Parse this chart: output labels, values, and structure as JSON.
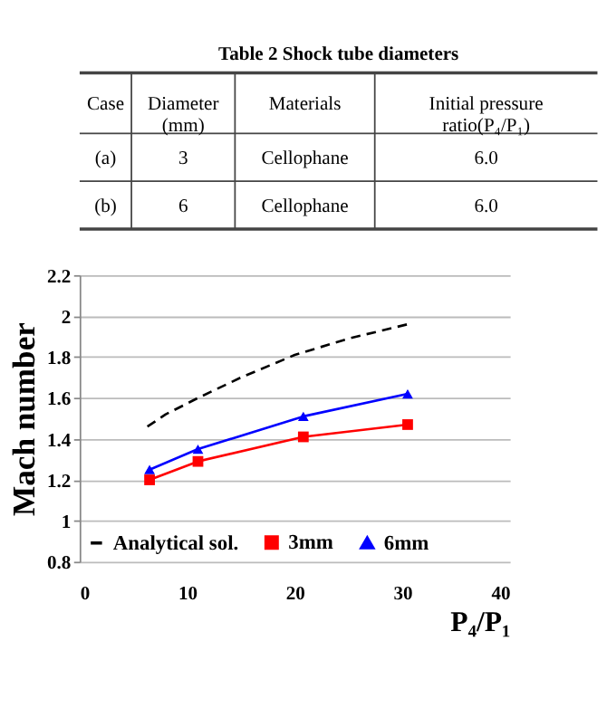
{
  "chart_data": [
    {
      "type": "other",
      "title": "Table 2 Shock tube diameters",
      "categories": [
        "Case",
        "Diameter\n(mm)",
        "Materials",
        "Initial pressure\nratio(P₄/P₁)"
      ],
      "annotations": [
        "(a)",
        "3",
        "Cellophane",
        "6.0",
        "(b)",
        "6",
        "Cellophane",
        "6.0"
      ]
    },
    {
      "type": "line",
      "xlabel": "P₄/P₁",
      "ylabel": "Mach number",
      "xlim": [
        0,
        40
      ],
      "xticks": [
        0,
        10,
        20,
        30,
        40
      ],
      "ylim": [
        0.8,
        2.2
      ],
      "yticks": [
        0.8,
        1,
        1.2,
        1.4,
        1.6,
        1.8,
        2,
        2.2
      ],
      "grid": "y",
      "legend": "bottom",
      "series": [
        {
          "name": "Analytical sol.",
          "color": "#000000",
          "line_style": "dashed",
          "marker": "none",
          "x": [
            6.3,
            8,
            11,
            15,
            20,
            25,
            30.5
          ],
          "values": [
            1.46,
            1.52,
            1.6,
            1.7,
            1.81,
            1.89,
            1.96
          ]
        },
        {
          "name": "3mm",
          "color": "#ff0000",
          "line_style": "solid",
          "marker": "square",
          "x": [
            6.5,
            11,
            20.8,
            30.5
          ],
          "values": [
            1.2,
            1.29,
            1.41,
            1.47
          ]
        },
        {
          "name": "6mm",
          "color": "#0000ff",
          "line_style": "solid",
          "marker": "triangle",
          "x": [
            6.5,
            11,
            20.8,
            30.5
          ],
          "values": [
            1.25,
            1.35,
            1.51,
            1.62
          ]
        }
      ]
    }
  ]
}
